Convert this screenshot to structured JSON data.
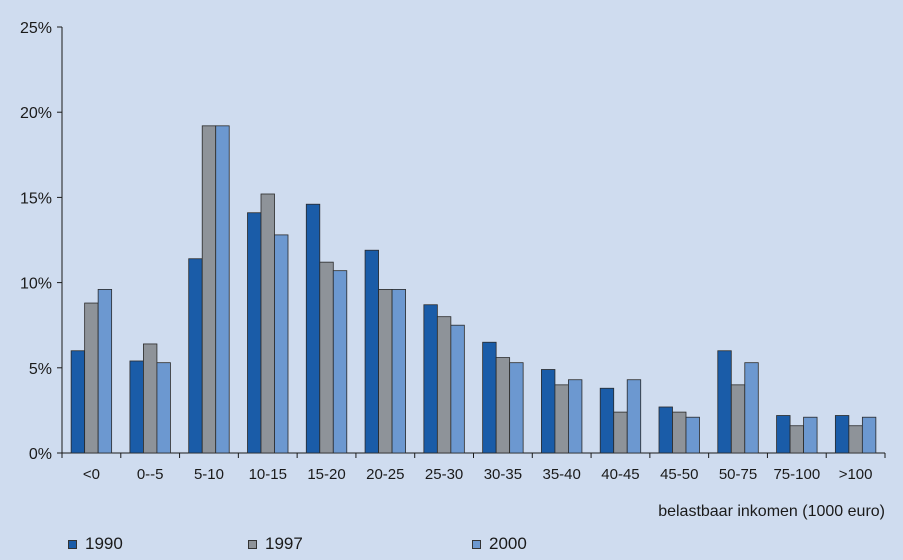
{
  "chart_data": {
    "type": "bar",
    "categories": [
      "<0",
      "0--5",
      "5-10",
      "10-15",
      "15-20",
      "20-25",
      "25-30",
      "30-35",
      "35-40",
      "40-45",
      "45-50",
      "50-75",
      "75-100",
      ">100"
    ],
    "series": [
      {
        "name": "1990",
        "color": "#1a5ca8",
        "values": [
          6.0,
          5.4,
          11.4,
          14.1,
          14.6,
          11.9,
          8.7,
          6.5,
          4.9,
          3.8,
          2.7,
          6.0,
          2.2,
          2.2
        ]
      },
      {
        "name": "1997",
        "color": "#8e9399",
        "values": [
          8.8,
          6.4,
          19.2,
          15.2,
          11.2,
          9.6,
          8.0,
          5.6,
          4.0,
          2.4,
          2.4,
          4.0,
          1.6,
          1.6
        ]
      },
      {
        "name": "2000",
        "color": "#6c98d0",
        "values": [
          9.6,
          5.3,
          19.2,
          12.8,
          10.7,
          9.6,
          7.5,
          5.3,
          4.3,
          4.3,
          2.1,
          5.3,
          2.1,
          2.1
        ]
      }
    ],
    "y_ticks": [
      "0%",
      "5%",
      "10%",
      "15%",
      "20%",
      "25%"
    ],
    "xlabel": "belastbaar inkomen (1000 euro)",
    "ylabel": "",
    "ylim": [
      0,
      25
    ],
    "grid": false,
    "legend_position": "bottom"
  }
}
